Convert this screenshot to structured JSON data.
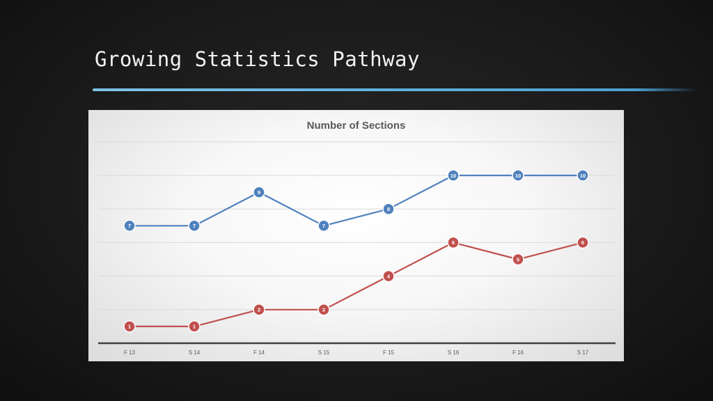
{
  "slide": {
    "title": "Growing Statistics Pathway"
  },
  "colors": {
    "series_blue": "#4f81bd",
    "series_red": "#c0504d",
    "accent_rule": "#5fb0dc"
  },
  "chart_data": {
    "type": "line",
    "title": "Number of Sections",
    "xlabel": "",
    "ylabel": "",
    "categories": [
      "F 13",
      "S 14",
      "F 14",
      "S 15",
      "F 15",
      "S 16",
      "F 16",
      "S 17"
    ],
    "ylim": [
      0,
      12
    ],
    "grid": true,
    "legend": "none",
    "data_labels": true,
    "series": [
      {
        "values": [
          7,
          7,
          9,
          7,
          8,
          10,
          10,
          10
        ],
        "color": "#4f81bd"
      },
      {
        "values": [
          1,
          1,
          2,
          2,
          4,
          6,
          5,
          6
        ],
        "color": "#c0504d"
      }
    ]
  }
}
